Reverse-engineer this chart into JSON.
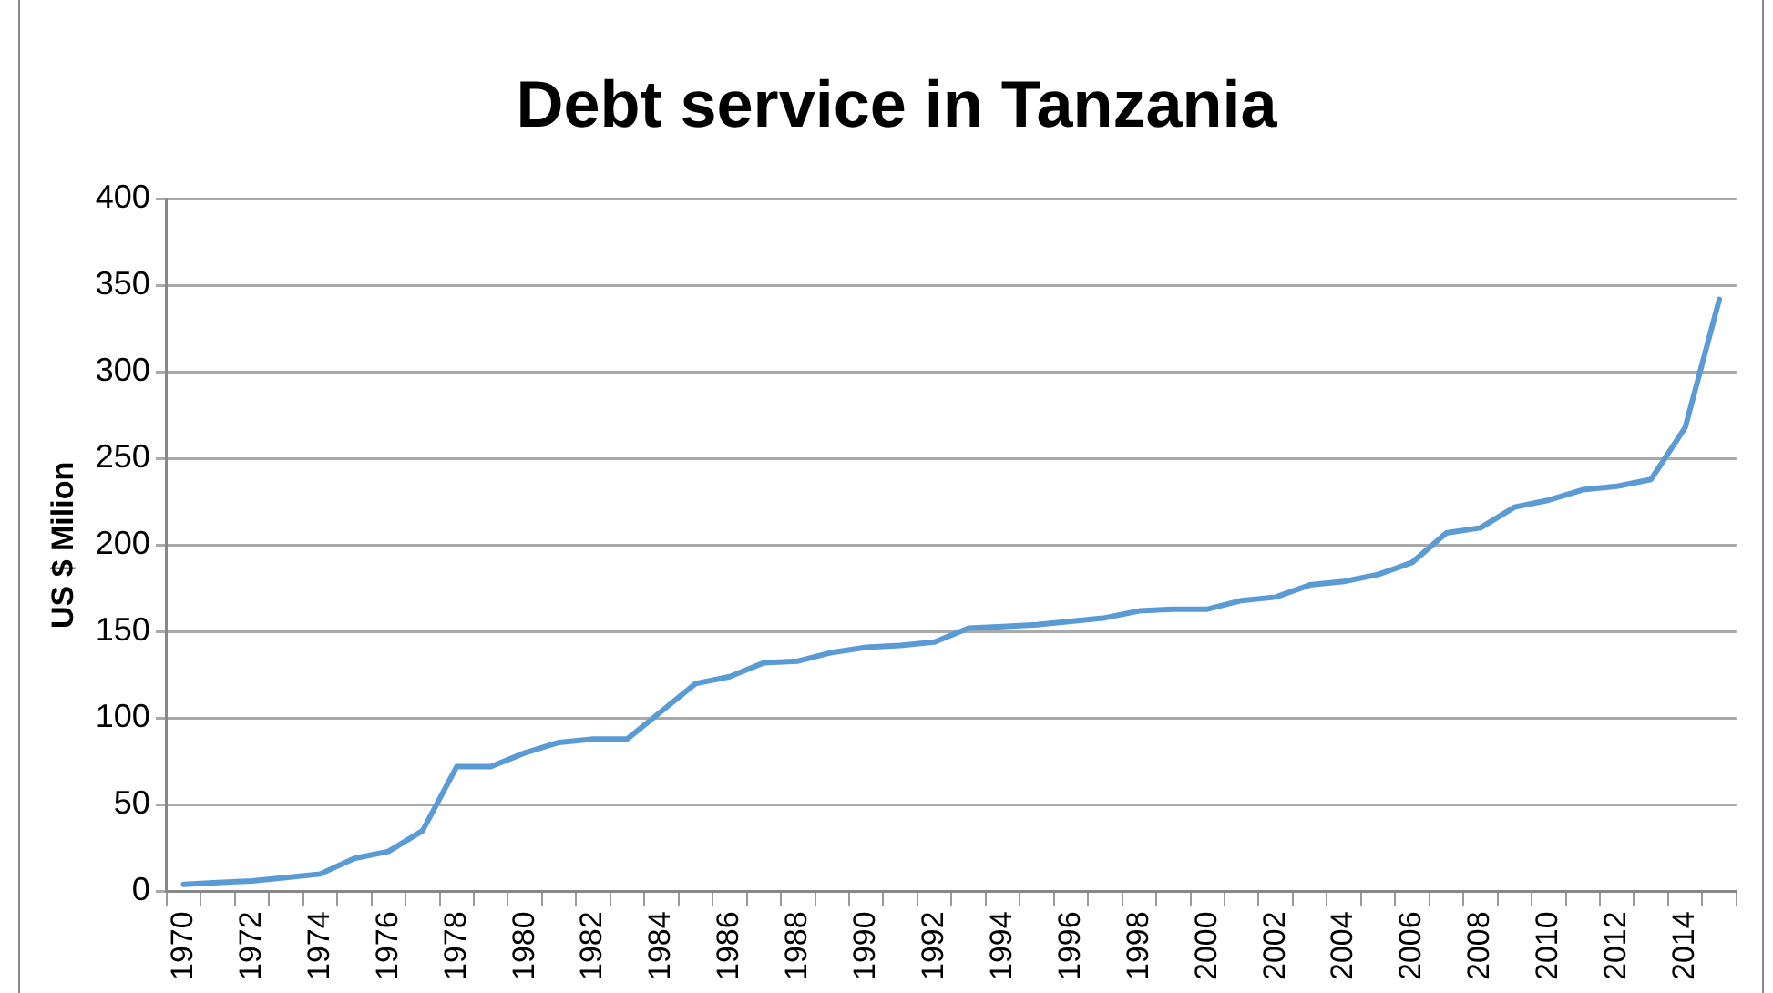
{
  "chart_data": {
    "type": "line",
    "title": "Debt service in Tanzania",
    "ylabel": "US $ Milion",
    "categories": [
      "1970",
      null,
      "1972",
      null,
      "1974",
      null,
      "1976",
      null,
      "1978",
      null,
      "1980",
      null,
      "1982",
      null,
      "1984",
      null,
      "1986",
      null,
      "1988",
      null,
      "1990",
      null,
      "1992",
      null,
      "1994",
      null,
      "1996",
      null,
      "1998",
      null,
      "2000",
      null,
      "2002",
      null,
      "2004",
      null,
      "2006",
      null,
      "2008",
      null,
      "2010",
      null,
      "2012",
      null,
      "2014",
      null
    ],
    "series": [
      {
        "color": "#5b9bd5",
        "values": [
          4,
          5,
          6,
          8,
          10,
          19,
          23,
          35,
          72,
          72,
          80,
          86,
          88,
          88,
          104,
          120,
          124,
          132,
          133,
          138,
          141,
          142,
          144,
          152,
          153,
          154,
          156,
          158,
          162,
          163,
          163,
          168,
          170,
          177,
          179,
          183,
          190,
          207,
          210,
          222,
          226,
          232,
          234,
          238,
          268,
          342
        ]
      }
    ],
    "ylim": [
      0,
      400
    ],
    "yticks": [
      0,
      50,
      100,
      150,
      200,
      250,
      300,
      350,
      400
    ],
    "grid": "y",
    "legend": false,
    "marker": "none",
    "line_style": "solid"
  }
}
